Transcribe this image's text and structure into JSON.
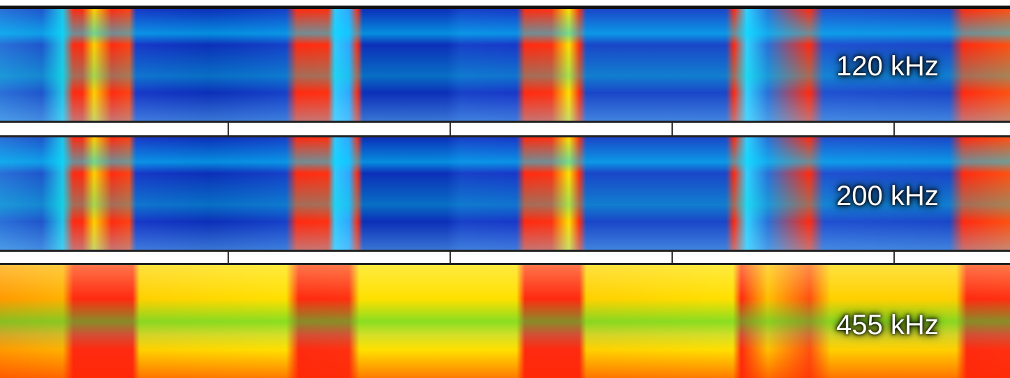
{
  "panels": [
    {
      "label": "120 kHz"
    },
    {
      "label": "200 kHz"
    },
    {
      "label": "455 kHz"
    }
  ]
}
